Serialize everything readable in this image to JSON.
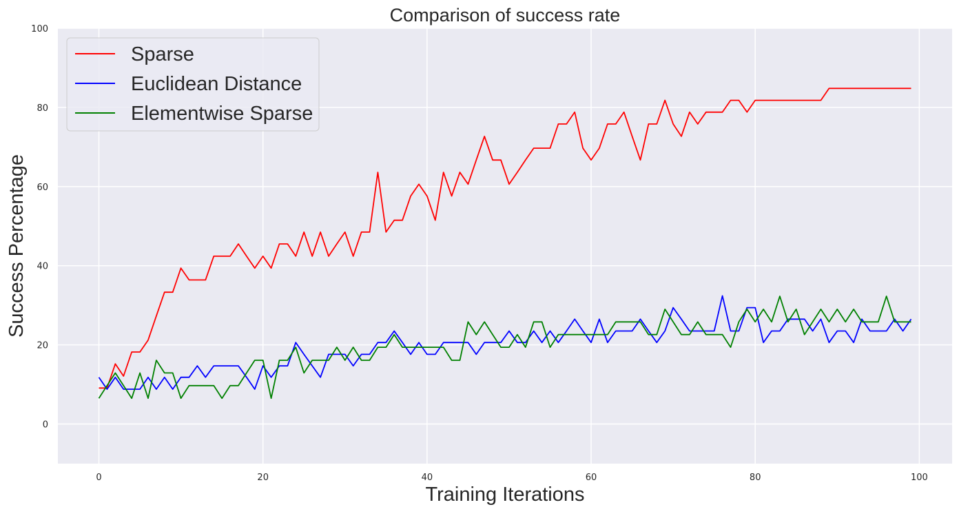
{
  "chart_data": {
    "type": "line",
    "title": "Comparison of success rate",
    "xlabel": "Training Iterations",
    "ylabel": "Success Percentage",
    "xlim": [
      -5,
      104
    ],
    "ylim": [
      -10,
      100
    ],
    "xticks": [
      0,
      20,
      40,
      60,
      80,
      100
    ],
    "yticks": [
      0,
      20,
      40,
      60,
      80,
      100
    ],
    "grid": true,
    "legend_position": "top-left",
    "colors": {
      "background": "#eaeaf2",
      "grid": "#ffffff",
      "text": "#262626"
    },
    "series": [
      {
        "name": "Sparse",
        "color": "#ff0000",
        "values": [
          9.1,
          9.1,
          15.2,
          12.1,
          18.2,
          18.2,
          21.2,
          27.3,
          33.3,
          33.3,
          39.4,
          36.4,
          36.4,
          36.4,
          42.4,
          42.4,
          42.4,
          45.5,
          42.4,
          39.4,
          42.4,
          39.4,
          45.5,
          45.5,
          42.4,
          48.5,
          42.4,
          48.5,
          42.4,
          45.5,
          48.5,
          42.4,
          48.5,
          48.5,
          63.6,
          48.5,
          51.5,
          51.5,
          57.6,
          60.6,
          57.6,
          51.5,
          63.6,
          57.6,
          63.6,
          60.6,
          66.7,
          72.7,
          66.7,
          66.7,
          60.6,
          63.6,
          66.7,
          69.7,
          69.7,
          69.7,
          75.8,
          75.8,
          78.8,
          69.7,
          66.7,
          69.7,
          75.8,
          75.8,
          78.8,
          72.7,
          66.7,
          75.8,
          75.8,
          81.8,
          75.8,
          72.7,
          78.8,
          75.8,
          78.8,
          78.8,
          78.8,
          81.8,
          81.8,
          78.8,
          81.8,
          81.8,
          81.8,
          81.8,
          81.8,
          81.8,
          81.8,
          81.8,
          81.8,
          84.8,
          84.8,
          84.8,
          84.8,
          84.8,
          84.8,
          84.8,
          84.8,
          84.8,
          84.8,
          84.8
        ]
      },
      {
        "name": "Euclidean Distance",
        "color": "#0000ff",
        "values": [
          11.8,
          8.8,
          11.8,
          8.8,
          8.8,
          8.8,
          11.8,
          8.8,
          11.8,
          8.8,
          11.8,
          11.8,
          14.7,
          11.8,
          14.7,
          14.7,
          14.7,
          14.7,
          11.8,
          8.8,
          14.7,
          11.8,
          14.7,
          14.7,
          20.6,
          17.6,
          14.7,
          11.8,
          17.6,
          17.6,
          17.6,
          14.7,
          17.6,
          17.6,
          20.6,
          20.6,
          23.5,
          20.6,
          17.6,
          20.6,
          17.6,
          17.6,
          20.6,
          20.6,
          20.6,
          20.6,
          17.6,
          20.6,
          20.6,
          20.6,
          23.5,
          20.6,
          20.6,
          23.5,
          20.6,
          23.5,
          20.6,
          23.5,
          26.5,
          23.5,
          20.6,
          26.5,
          20.6,
          23.5,
          23.5,
          23.5,
          26.5,
          23.5,
          20.6,
          23.5,
          29.4,
          26.5,
          23.5,
          23.5,
          23.5,
          23.5,
          32.4,
          23.5,
          23.5,
          29.4,
          29.4,
          20.6,
          23.5,
          23.5,
          26.5,
          26.5,
          26.5,
          23.5,
          26.5,
          20.6,
          23.5,
          23.5,
          20.6,
          26.5,
          23.5,
          23.5,
          23.5,
          26.5,
          23.5,
          26.5
        ]
      },
      {
        "name": "Elementwise Sparse",
        "color": "#008000",
        "values": [
          6.5,
          9.7,
          12.9,
          9.7,
          6.5,
          12.9,
          6.5,
          16.1,
          12.9,
          12.9,
          6.5,
          9.7,
          9.7,
          9.7,
          9.7,
          6.5,
          9.7,
          9.7,
          12.9,
          16.1,
          16.1,
          6.5,
          16.1,
          16.1,
          19.4,
          12.9,
          16.1,
          16.1,
          16.1,
          19.4,
          16.1,
          19.4,
          16.1,
          16.1,
          19.4,
          19.4,
          22.6,
          19.4,
          19.4,
          19.4,
          19.4,
          19.4,
          19.4,
          16.1,
          16.1,
          25.8,
          22.6,
          25.8,
          22.6,
          19.4,
          19.4,
          22.6,
          19.4,
          25.8,
          25.8,
          19.4,
          22.6,
          22.6,
          22.6,
          22.6,
          22.6,
          22.6,
          22.6,
          25.8,
          25.8,
          25.8,
          25.8,
          22.6,
          22.6,
          29.0,
          25.8,
          22.6,
          22.6,
          25.8,
          22.6,
          22.6,
          22.6,
          19.4,
          25.8,
          29.0,
          25.8,
          29.0,
          25.8,
          32.3,
          25.8,
          29.0,
          22.6,
          25.8,
          29.0,
          25.8,
          29.0,
          25.8,
          29.0,
          25.8,
          25.8,
          25.8,
          32.3,
          25.8,
          25.8,
          25.8
        ]
      }
    ]
  }
}
